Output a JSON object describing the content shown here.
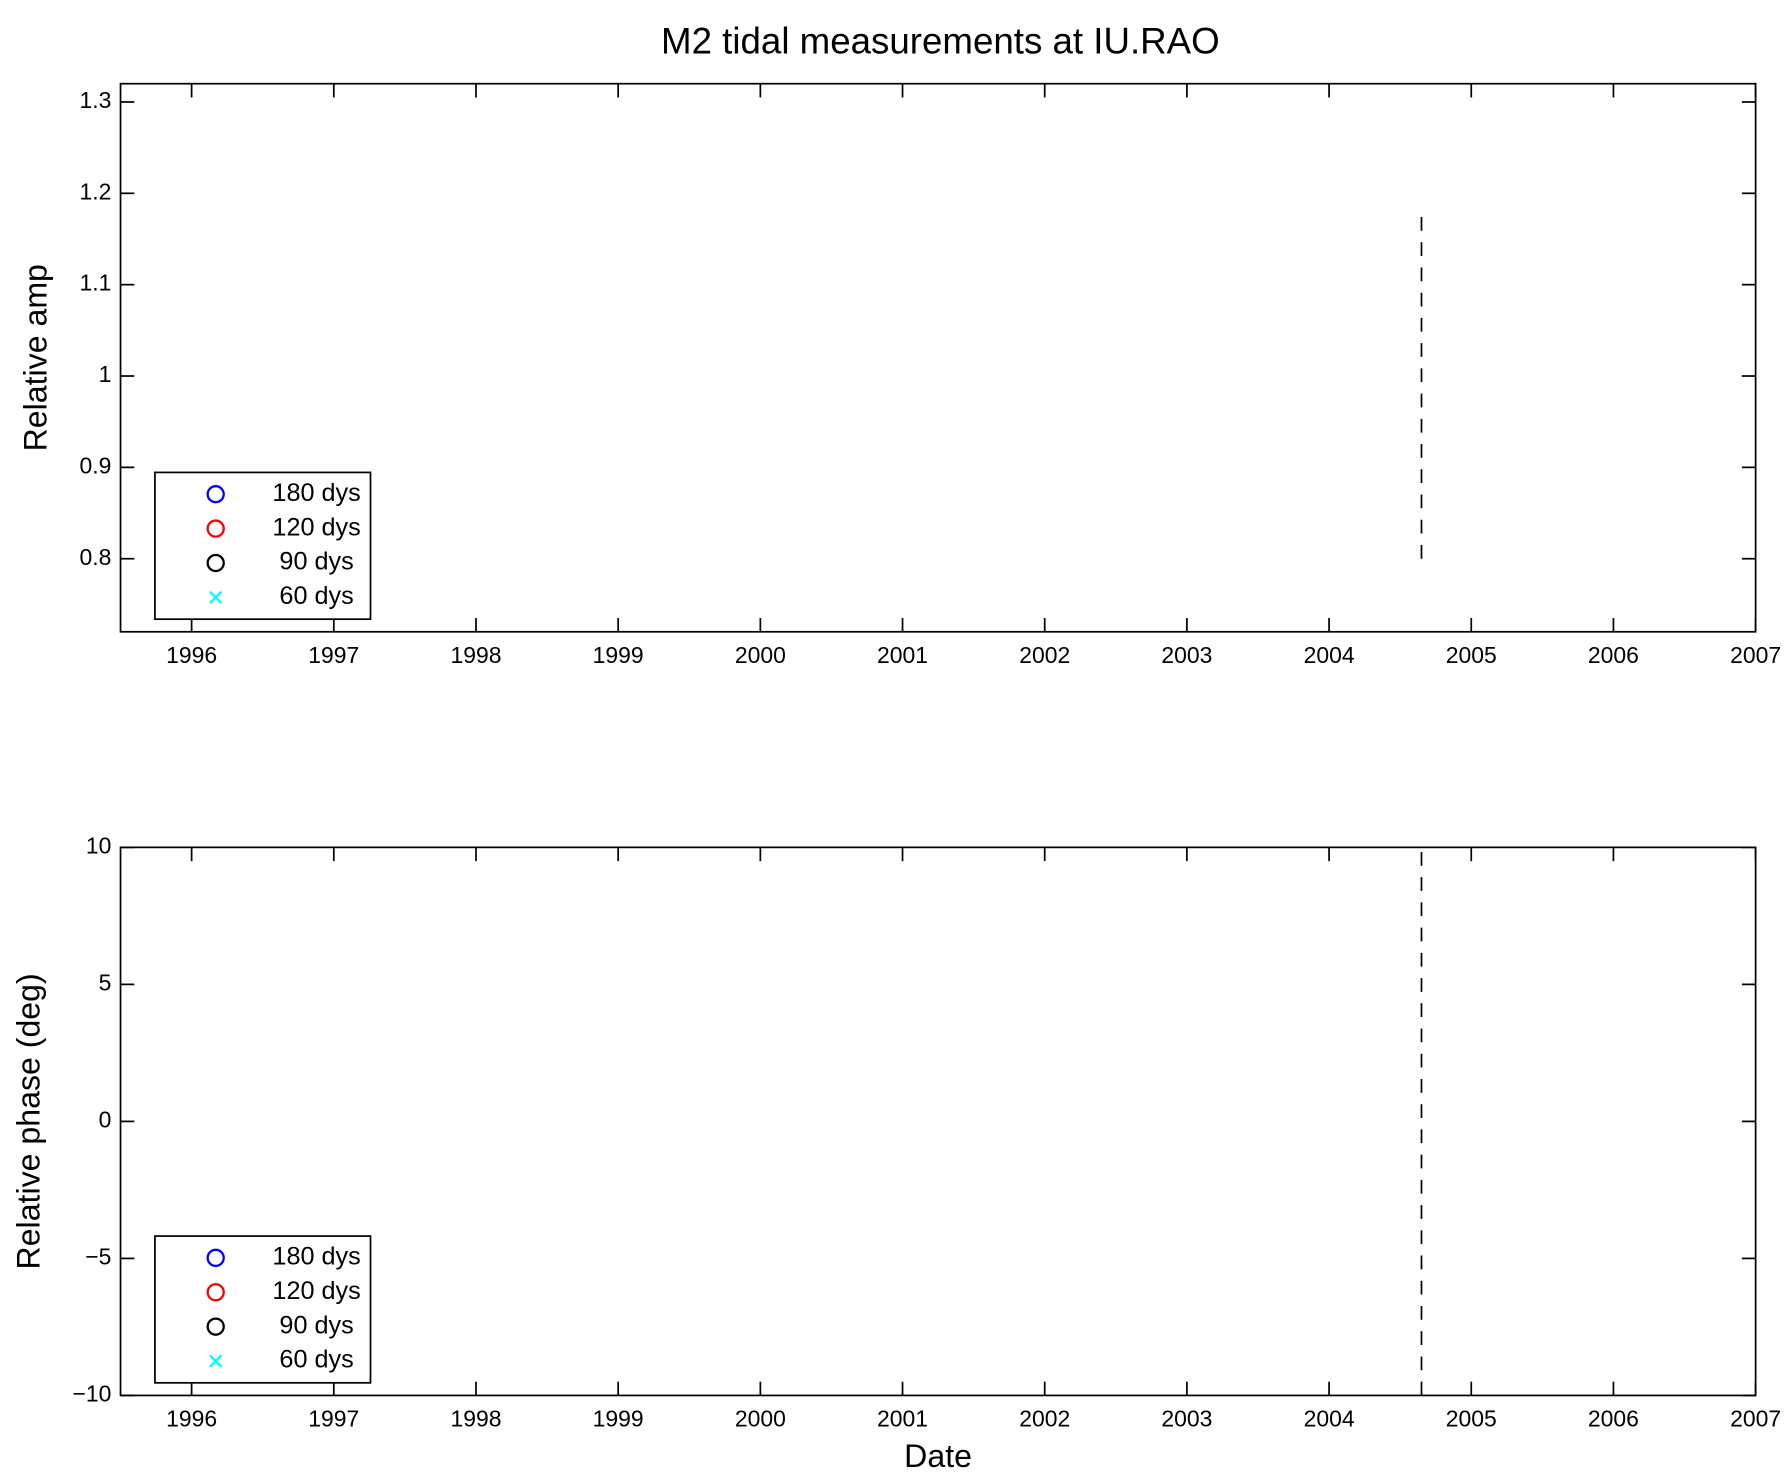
{
  "chart_data": [
    {
      "type": "scatter",
      "title": "M2 tidal measurements at IU.RAO",
      "y_label": "Relative amp",
      "x": [],
      "series": [
        {
          "name": "180 dys",
          "color": "#0000ff",
          "marker": "o",
          "values": []
        },
        {
          "name": "120 dys",
          "color": "#ff0000",
          "marker": "o",
          "values": []
        },
        {
          "name": "90 dys",
          "color": "#000000",
          "marker": "o",
          "values": []
        },
        {
          "name": "60 dys",
          "color": "#00ffff",
          "marker": "x",
          "values": []
        }
      ],
      "vline": {
        "x": 2004.65,
        "y": [
          0.8,
          1.18
        ]
      },
      "xlim": [
        1995.5,
        2007
      ],
      "xticks": [
        1996,
        1997,
        1998,
        1999,
        2000,
        2001,
        2002,
        2003,
        2004,
        2005,
        2006,
        2007
      ],
      "ylim": [
        0.72,
        1.32
      ],
      "yticks": [
        0.8,
        0.9,
        1,
        1.1,
        1.2,
        1.3
      ],
      "legend": "lower left"
    },
    {
      "type": "scatter",
      "y_label": "Relative phase (deg)",
      "x_label": "Date",
      "x": [],
      "series": [
        {
          "name": "180 dys",
          "color": "#0000ff",
          "marker": "o",
          "values": []
        },
        {
          "name": "120 dys",
          "color": "#ff0000",
          "marker": "o",
          "values": []
        },
        {
          "name": "90 dys",
          "color": "#000000",
          "marker": "o",
          "values": []
        },
        {
          "name": "60 dys",
          "color": "#00ffff",
          "marker": "x",
          "values": []
        }
      ],
      "vline": {
        "x": 2004.65,
        "y": [
          -10,
          10
        ]
      },
      "xlim": [
        1995.5,
        2007
      ],
      "xticks": [
        1996,
        1997,
        1998,
        1999,
        2000,
        2001,
        2002,
        2003,
        2004,
        2005,
        2006,
        2007
      ],
      "ylim": [
        -10,
        10
      ],
      "yticks": [
        {
          "value": -10,
          "label": "−10"
        },
        {
          "value": -5,
          "label": "−5"
        },
        0,
        5,
        10
      ],
      "legend": "lower left"
    }
  ]
}
